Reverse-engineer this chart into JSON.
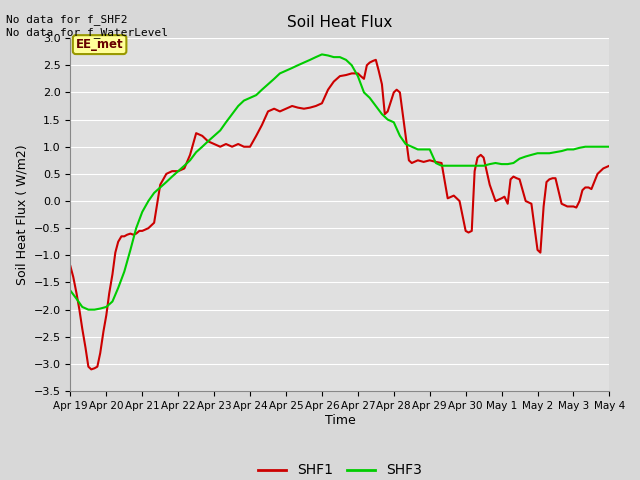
{
  "title": "Soil Heat Flux",
  "xlabel": "Time",
  "ylabel": "Soil Heat Flux ( W/m2)",
  "ylim": [
    -3.5,
    3.0
  ],
  "yticks": [
    -3.5,
    -3.0,
    -2.5,
    -2.0,
    -1.5,
    -1.0,
    -0.5,
    0.0,
    0.5,
    1.0,
    1.5,
    2.0,
    2.5,
    3.0
  ],
  "xtick_labels": [
    "Apr 19",
    "Apr 20",
    "Apr 21",
    "Apr 22",
    "Apr 23",
    "Apr 24",
    "Apr 25",
    "Apr 26",
    "Apr 27",
    "Apr 28",
    "Apr 29",
    "Apr 30",
    "May 1",
    "May 2",
    "May 3",
    "May 4"
  ],
  "annotation_text": "No data for f_SHF2\nNo data for f_WaterLevel",
  "box_label": "EE_met",
  "background_color": "#d8d8d8",
  "plot_bg_color": "#e0e0e0",
  "grid_color": "#ffffff",
  "shf1_color": "#cc0000",
  "shf3_color": "#00cc00",
  "legend_shf1": "SHF1",
  "legend_shf3": "SHF3",
  "shf1_x": [
    0.0,
    0.08,
    0.17,
    0.25,
    0.33,
    0.42,
    0.5,
    0.58,
    0.67,
    0.75,
    0.83,
    0.92,
    1.0,
    1.08,
    1.17,
    1.25,
    1.33,
    1.42,
    1.5,
    1.58,
    1.67,
    1.75,
    1.83,
    1.92,
    2.0,
    2.17,
    2.33,
    2.5,
    2.67,
    2.83,
    3.0,
    3.17,
    3.33,
    3.5,
    3.67,
    3.83,
    4.0,
    4.17,
    4.33,
    4.5,
    4.67,
    4.83,
    5.0,
    5.17,
    5.33,
    5.5,
    5.67,
    5.83,
    6.0,
    6.17,
    6.33,
    6.5,
    6.67,
    6.83,
    7.0,
    7.17,
    7.33,
    7.5,
    7.67,
    7.83,
    8.0,
    8.08,
    8.17,
    8.25,
    8.33,
    8.42,
    8.5,
    8.58,
    8.67,
    8.75,
    8.83,
    9.0,
    9.08,
    9.17,
    9.25,
    9.33,
    9.42,
    9.5,
    9.67,
    9.83,
    10.0,
    10.17,
    10.33,
    10.5,
    10.67,
    10.83,
    11.0,
    11.08,
    11.17,
    11.25,
    11.33,
    11.42,
    11.5,
    11.67,
    11.83,
    12.0,
    12.08,
    12.17,
    12.25,
    12.33,
    12.42,
    12.5,
    12.67,
    12.83,
    13.0,
    13.08,
    13.17,
    13.25,
    13.33,
    13.42,
    13.5,
    13.67,
    13.83,
    14.0,
    14.08,
    14.17,
    14.25,
    14.33,
    14.42,
    14.5,
    14.67,
    14.83,
    15.0
  ],
  "shf1_y": [
    -1.2,
    -1.4,
    -1.7,
    -2.0,
    -2.35,
    -2.7,
    -3.05,
    -3.1,
    -3.08,
    -3.05,
    -2.8,
    -2.4,
    -2.1,
    -1.7,
    -1.35,
    -0.95,
    -0.75,
    -0.65,
    -0.65,
    -0.62,
    -0.6,
    -0.62,
    -0.6,
    -0.55,
    -0.55,
    -0.5,
    -0.4,
    0.3,
    0.5,
    0.55,
    0.55,
    0.6,
    0.85,
    1.25,
    1.2,
    1.1,
    1.05,
    1.0,
    1.05,
    1.0,
    1.05,
    1.0,
    1.0,
    1.2,
    1.4,
    1.65,
    1.7,
    1.65,
    1.7,
    1.75,
    1.72,
    1.7,
    1.72,
    1.75,
    1.8,
    2.05,
    2.2,
    2.3,
    2.32,
    2.35,
    2.35,
    2.3,
    2.25,
    2.5,
    2.55,
    2.58,
    2.6,
    2.4,
    2.15,
    1.6,
    1.65,
    2.0,
    2.05,
    2.0,
    1.6,
    1.2,
    0.75,
    0.7,
    0.75,
    0.72,
    0.75,
    0.72,
    0.7,
    0.05,
    0.1,
    0.0,
    -0.55,
    -0.58,
    -0.55,
    0.55,
    0.8,
    0.85,
    0.8,
    0.3,
    0.0,
    0.05,
    0.08,
    -0.05,
    0.4,
    0.45,
    0.42,
    0.4,
    0.0,
    -0.05,
    -0.9,
    -0.95,
    -0.1,
    0.35,
    0.4,
    0.42,
    0.42,
    -0.05,
    -0.1,
    -0.1,
    -0.12,
    0.0,
    0.2,
    0.25,
    0.25,
    0.22,
    0.5,
    0.6,
    0.65
  ],
  "shf3_x": [
    0.0,
    0.17,
    0.33,
    0.5,
    0.67,
    0.83,
    1.0,
    1.17,
    1.33,
    1.5,
    1.67,
    1.83,
    2.0,
    2.17,
    2.33,
    2.5,
    2.67,
    2.83,
    3.0,
    3.17,
    3.33,
    3.5,
    3.67,
    3.83,
    4.0,
    4.17,
    4.33,
    4.5,
    4.67,
    4.83,
    5.0,
    5.17,
    5.33,
    5.5,
    5.67,
    5.83,
    6.0,
    6.17,
    6.33,
    6.5,
    6.67,
    6.83,
    7.0,
    7.17,
    7.33,
    7.5,
    7.67,
    7.83,
    8.0,
    8.17,
    8.33,
    8.5,
    8.67,
    8.83,
    9.0,
    9.17,
    9.33,
    9.5,
    9.67,
    9.83,
    10.0,
    10.17,
    10.33,
    10.5,
    10.67,
    10.83,
    11.0,
    11.17,
    11.33,
    11.5,
    11.67,
    11.83,
    12.0,
    12.17,
    12.33,
    12.5,
    12.67,
    12.83,
    13.0,
    13.17,
    13.33,
    13.5,
    13.67,
    13.83,
    14.0,
    14.17,
    14.33,
    14.5,
    14.67,
    14.83,
    15.0
  ],
  "shf3_y": [
    -1.65,
    -1.8,
    -1.95,
    -2.0,
    -2.0,
    -1.98,
    -1.95,
    -1.85,
    -1.6,
    -1.3,
    -0.9,
    -0.5,
    -0.2,
    0.0,
    0.15,
    0.25,
    0.35,
    0.45,
    0.55,
    0.65,
    0.75,
    0.9,
    1.0,
    1.1,
    1.2,
    1.3,
    1.45,
    1.6,
    1.75,
    1.85,
    1.9,
    1.95,
    2.05,
    2.15,
    2.25,
    2.35,
    2.4,
    2.45,
    2.5,
    2.55,
    2.6,
    2.65,
    2.7,
    2.68,
    2.65,
    2.65,
    2.6,
    2.5,
    2.3,
    2.0,
    1.9,
    1.75,
    1.6,
    1.5,
    1.45,
    1.2,
    1.05,
    1.0,
    0.95,
    0.95,
    0.95,
    0.7,
    0.65,
    0.65,
    0.65,
    0.65,
    0.65,
    0.65,
    0.65,
    0.65,
    0.68,
    0.7,
    0.68,
    0.68,
    0.7,
    0.78,
    0.82,
    0.85,
    0.88,
    0.88,
    0.88,
    0.9,
    0.92,
    0.95,
    0.95,
    0.98,
    1.0,
    1.0,
    1.0,
    1.0,
    1.0
  ]
}
